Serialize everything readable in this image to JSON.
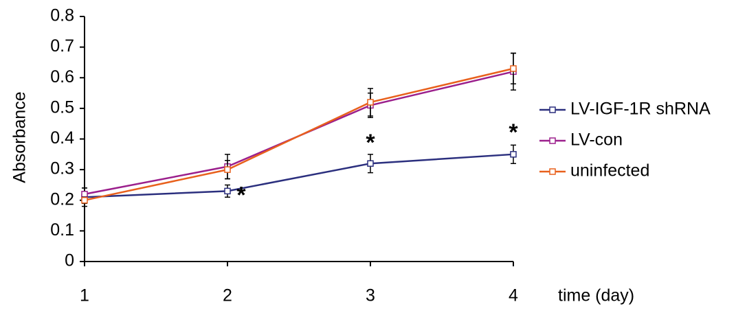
{
  "chart_data": {
    "type": "line",
    "x_label": "time (day)",
    "y_label": "Absorbance",
    "x": [
      1,
      2,
      3,
      4
    ],
    "xlim": [
      1,
      4
    ],
    "xticks": [
      1,
      2,
      3,
      4
    ],
    "ylim": [
      0,
      0.8
    ],
    "yticks": [
      0,
      0.1,
      0.2,
      0.3,
      0.4,
      0.5,
      0.6,
      0.7,
      0.8
    ],
    "legend": "right",
    "series": [
      {
        "name": "LV-IGF-1R shRNA",
        "color": "#2b2f7e",
        "values": [
          0.21,
          0.23,
          0.32,
          0.35
        ],
        "errors": [
          0.03,
          0.02,
          0.03,
          0.03
        ]
      },
      {
        "name": "LV-con",
        "color": "#9b1f8c",
        "values": [
          0.22,
          0.31,
          0.51,
          0.62
        ],
        "errors": [
          0.02,
          0.04,
          0.04,
          0.06
        ]
      },
      {
        "name": "uninfected",
        "color": "#e8601c",
        "values": [
          0.2,
          0.3,
          0.52,
          0.63
        ],
        "errors": [
          0.01,
          0.03,
          0.045,
          0.05
        ]
      }
    ],
    "annotations": [
      {
        "text": "*",
        "x": 2
      },
      {
        "text": "*",
        "x": 3
      },
      {
        "text": "*",
        "x": 4
      }
    ]
  }
}
